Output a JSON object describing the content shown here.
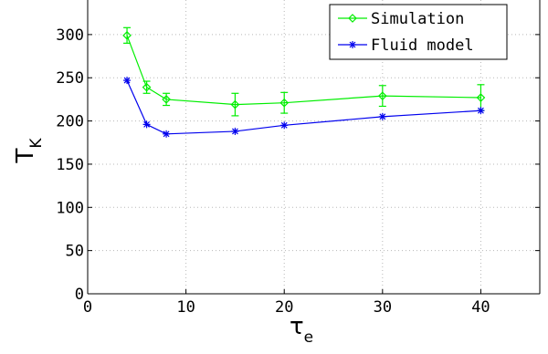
{
  "chart_data": {
    "type": "line",
    "xlabel": "τ",
    "xlabel_sub": "e",
    "ylabel": "T",
    "ylabel_sub": "K",
    "xlim": [
      0,
      46
    ],
    "ylim": [
      0,
      340
    ],
    "xticks": [
      0,
      10,
      20,
      30,
      40
    ],
    "yticks": [
      0,
      50,
      100,
      150,
      200,
      250,
      300
    ],
    "grid": true,
    "legend_position": "top-right",
    "series": [
      {
        "name": "Simulation",
        "color": "#00ee00",
        "marker": "diamond",
        "x": [
          4,
          6,
          8,
          15,
          20,
          30,
          40
        ],
        "y": [
          299,
          239,
          225,
          219,
          221,
          229,
          227
        ],
        "err": [
          9,
          7,
          7,
          13,
          12,
          12,
          15
        ]
      },
      {
        "name": "Fluid model",
        "color": "#0000ee",
        "marker": "asterisk",
        "x": [
          4,
          6,
          8,
          15,
          20,
          30,
          40
        ],
        "y": [
          247,
          196,
          185,
          188,
          195,
          205,
          212
        ]
      }
    ]
  }
}
